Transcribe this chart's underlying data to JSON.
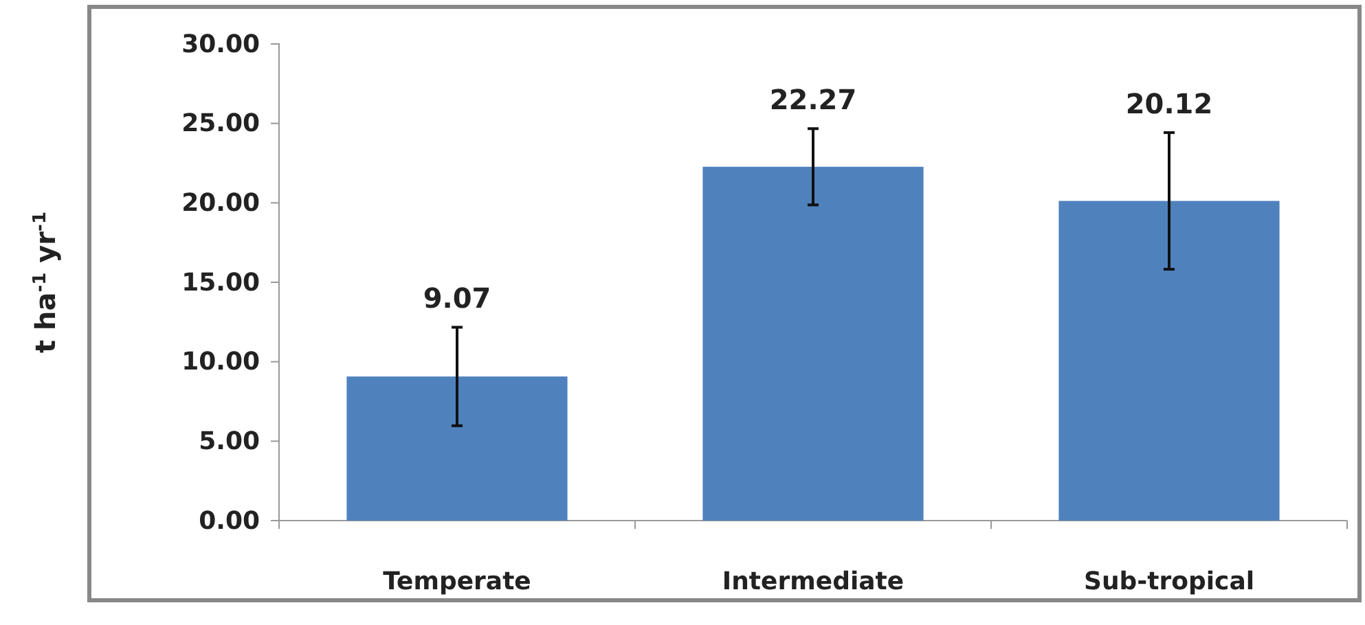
{
  "chart_data": {
    "type": "bar",
    "ylabel": "t ha$^{-1}$ yr$^{-1}$",
    "categories": [
      "Temperate",
      "Intermediate",
      "Sub-tropical"
    ],
    "values": [
      9.07,
      22.27,
      20.12
    ],
    "errors": [
      3.1,
      2.4,
      4.3
    ],
    "color": "#4f81bd",
    "ylim": [
      0,
      30
    ],
    "yticks": [
      {
        "value": 0,
        "label": "0.00"
      },
      {
        "value": 5,
        "label": "5.00"
      },
      {
        "value": 10,
        "label": "10.00"
      },
      {
        "value": 15,
        "label": "15.00"
      },
      {
        "value": 20,
        "label": "20.00"
      },
      {
        "value": 25,
        "label": "25.00"
      },
      {
        "value": 30,
        "label": "30.00"
      }
    ],
    "data_labels": true,
    "grid": false
  }
}
